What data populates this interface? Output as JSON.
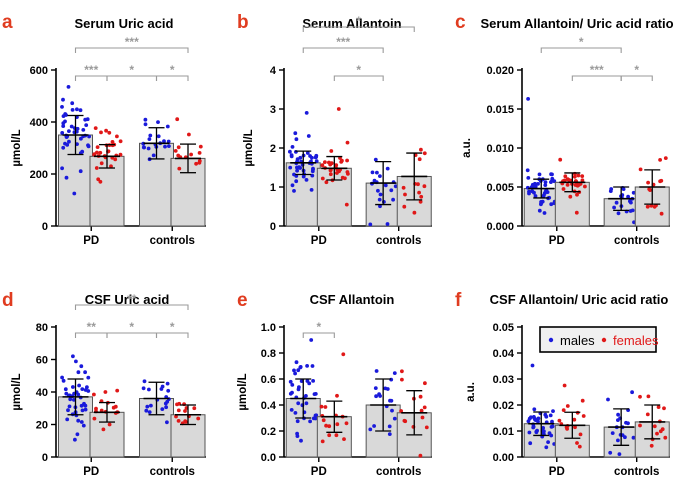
{
  "figure": {
    "group_colors": {
      "males": "#1a1adb",
      "females": "#e01818"
    },
    "bar_fill": "#d9d9d9",
    "bracket_color": "#9a9a9a",
    "legend": {
      "items": [
        "males",
        "females"
      ],
      "panel": "f"
    }
  },
  "chart_data": [
    {
      "panel": "a",
      "type": "bar",
      "title": "Serum Uric acid",
      "ylabel": "µmol/L",
      "xlabel": "",
      "categories": [
        "PD",
        "controls"
      ],
      "yticks": [
        "0",
        "200",
        "400",
        "600"
      ],
      "ytick_values": [
        0,
        200,
        400,
        600
      ],
      "ylim": [
        0,
        600
      ],
      "series": [
        {
          "name": "males",
          "values": [
            350,
            318
          ],
          "sd": [
            75,
            60
          ],
          "n": 45,
          "min": 125,
          "max": 535
        },
        {
          "name": "females",
          "values": [
            268,
            260
          ],
          "sd": [
            45,
            55
          ],
          "n": 30,
          "min": 170,
          "max": 360
        }
      ],
      "annotations": [
        {
          "text": "***",
          "from": "PD-males",
          "to": "controls-females",
          "level": 2
        },
        {
          "text": "***",
          "from": "PD-males",
          "to": "PD-females",
          "level": 1
        },
        {
          "text": "*",
          "from": "PD-females",
          "to": "controls-males",
          "level": 1
        },
        {
          "text": "*",
          "from": "controls-males",
          "to": "controls-females",
          "level": 1
        }
      ]
    },
    {
      "panel": "b",
      "type": "bar",
      "title": "Serum Allantoin",
      "ylabel": "µmol/L",
      "xlabel": "",
      "categories": [
        "PD",
        "controls"
      ],
      "yticks": [
        "0",
        "1",
        "2",
        "3",
        "4"
      ],
      "ytick_values": [
        0,
        1,
        2,
        3,
        4
      ],
      "ylim": [
        0,
        4
      ],
      "series": [
        {
          "name": "males",
          "values": [
            1.62,
            1.1
          ],
          "sd": [
            0.3,
            0.55
          ],
          "n": 45,
          "min": 0.9,
          "max": 2.9
        },
        {
          "name": "females",
          "values": [
            1.48,
            1.27
          ],
          "sd": [
            0.3,
            0.6
          ],
          "n": 30,
          "min": 0.55,
          "max": 3.0
        }
      ],
      "annotations": [
        {
          "text": "*",
          "from": "PD-males",
          "to": "controls-females",
          "level": 3
        },
        {
          "text": "***",
          "from": "PD-males",
          "to": "controls-males",
          "level": 2
        },
        {
          "text": "*",
          "from": "PD-females",
          "to": "controls-males",
          "level": 1
        }
      ]
    },
    {
      "panel": "c",
      "type": "bar",
      "title": "Serum Allantoin/ Uric acid ratio",
      "ylabel": "a.u.",
      "xlabel": "",
      "categories": [
        "PD",
        "controls"
      ],
      "yticks": [
        "0.000",
        "0.005",
        "0.010",
        "0.015",
        "0.020"
      ],
      "ytick_values": [
        0,
        0.005,
        0.01,
        0.015,
        0.02
      ],
      "ylim": [
        0,
        0.02
      ],
      "series": [
        {
          "name": "males",
          "values": [
            0.0048,
            0.0035
          ],
          "sd": [
            0.0012,
            0.0015
          ],
          "n": 45,
          "min": 0.0028,
          "max": 0.0163
        },
        {
          "name": "females",
          "values": [
            0.0056,
            0.005
          ],
          "sd": [
            0.0012,
            0.0022
          ],
          "n": 30,
          "min": 0.0017,
          "max": 0.0085
        }
      ],
      "annotations": [
        {
          "text": "*",
          "from": "PD-males",
          "to": "controls-males",
          "level": 2
        },
        {
          "text": "***",
          "from": "PD-females",
          "to": "controls-males",
          "level": 1
        },
        {
          "text": "*",
          "from": "controls-males",
          "to": "controls-females",
          "level": 1
        }
      ]
    },
    {
      "panel": "d",
      "type": "bar",
      "title": "CSF Uric acid",
      "ylabel": "µmol/L",
      "xlabel": "",
      "categories": [
        "PD",
        "controls"
      ],
      "yticks": [
        "0",
        "20",
        "40",
        "60",
        "80"
      ],
      "ytick_values": [
        0,
        20,
        40,
        60,
        80
      ],
      "ylim": [
        0,
        80
      ],
      "series": [
        {
          "name": "males",
          "values": [
            37,
            36
          ],
          "sd": [
            11,
            10
          ],
          "n": 42,
          "min": 14,
          "max": 62
        },
        {
          "name": "females",
          "values": [
            27.5,
            26
          ],
          "sd": [
            6,
            6
          ],
          "n": 16,
          "min": 17,
          "max": 40
        }
      ],
      "annotations": [
        {
          "text": "**",
          "from": "PD-males",
          "to": "controls-females",
          "level": 2
        },
        {
          "text": "**",
          "from": "PD-males",
          "to": "PD-females",
          "level": 1
        },
        {
          "text": "*",
          "from": "PD-females",
          "to": "controls-males",
          "level": 1
        },
        {
          "text": "*",
          "from": "controls-males",
          "to": "controls-females",
          "level": 1
        }
      ]
    },
    {
      "panel": "e",
      "type": "bar",
      "title": "CSF Allantoin",
      "ylabel": "µmol/L",
      "xlabel": "",
      "categories": [
        "PD",
        "controls"
      ],
      "yticks": [
        "0.0",
        "0.2",
        "0.4",
        "0.6",
        "0.8",
        "1.0"
      ],
      "ytick_values": [
        0,
        0.2,
        0.4,
        0.6,
        0.8,
        1.0
      ],
      "ylim": [
        0,
        1.0
      ],
      "series": [
        {
          "name": "males",
          "values": [
            0.45,
            0.4
          ],
          "sd": [
            0.15,
            0.2
          ],
          "n": 40,
          "min": 0.18,
          "max": 0.9
        },
        {
          "name": "females",
          "values": [
            0.31,
            0.34
          ],
          "sd": [
            0.12,
            0.17
          ],
          "n": 16,
          "min": 0.12,
          "max": 0.79
        }
      ],
      "annotations": [
        {
          "text": "*",
          "from": "PD-males",
          "to": "PD-females",
          "level": 1
        }
      ]
    },
    {
      "panel": "f",
      "type": "bar",
      "title": "CSF Allantoin/ Uric acid ratio",
      "ylabel": "a.u.",
      "xlabel": "",
      "categories": [
        "PD",
        "controls"
      ],
      "yticks": [
        "0.00",
        "0.01",
        "0.02",
        "0.03",
        "0.04",
        "0.05"
      ],
      "ytick_values": [
        0,
        0.01,
        0.02,
        0.03,
        0.04,
        0.05
      ],
      "ylim": [
        0,
        0.05
      ],
      "series": [
        {
          "name": "males",
          "values": [
            0.0128,
            0.0115
          ],
          "sd": [
            0.0045,
            0.007
          ],
          "n": 40,
          "min": 0.005,
          "max": 0.0352
        },
        {
          "name": "females",
          "values": [
            0.0122,
            0.0135
          ],
          "sd": [
            0.005,
            0.0065
          ],
          "n": 16,
          "min": 0.004,
          "max": 0.0275
        }
      ],
      "annotations": []
    }
  ]
}
